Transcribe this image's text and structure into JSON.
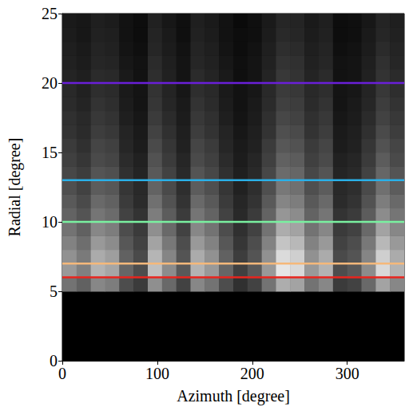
{
  "chart_data": {
    "type": "heatmap",
    "x_label": "Azimuth [degree]",
    "y_label": "Radial [degree]",
    "xlim": [
      0,
      360
    ],
    "ylim": [
      0,
      25
    ],
    "xticks": [
      0,
      100,
      200,
      300
    ],
    "yticks": [
      0,
      5,
      10,
      15,
      20,
      25
    ],
    "x_edges": [
      0,
      15,
      30,
      45,
      60,
      75,
      90,
      105,
      120,
      135,
      150,
      165,
      180,
      195,
      210,
      225,
      240,
      255,
      270,
      285,
      300,
      315,
      330,
      345,
      360
    ],
    "y_edges": [
      5,
      6,
      7,
      8,
      9,
      10,
      11,
      12,
      13,
      14,
      15,
      16,
      17,
      18,
      19,
      20,
      21,
      22,
      23,
      24,
      25
    ],
    "color_range": [
      0,
      100
    ],
    "cells": [
      [
        45,
        38,
        53,
        49,
        30,
        23,
        56,
        41,
        26,
        53,
        45,
        30,
        19,
        26,
        45,
        68,
        64,
        45,
        53,
        23,
        26,
        41,
        64,
        53
      ],
      [
        60,
        50,
        70,
        65,
        40,
        30,
        75,
        55,
        35,
        70,
        60,
        40,
        25,
        35,
        60,
        90,
        85,
        60,
        70,
        30,
        35,
        55,
        85,
        70
      ],
      [
        57,
        48,
        67,
        62,
        38,
        29,
        71,
        52,
        33,
        67,
        57,
        38,
        24,
        33,
        57,
        86,
        81,
        57,
        67,
        29,
        33,
        52,
        81,
        67
      ],
      [
        51,
        43,
        60,
        55,
        34,
        26,
        64,
        47,
        30,
        60,
        51,
        34,
        21,
        30,
        51,
        77,
        72,
        51,
        60,
        26,
        30,
        47,
        72,
        60
      ],
      [
        45,
        38,
        53,
        49,
        30,
        23,
        56,
        41,
        26,
        53,
        45,
        30,
        19,
        26,
        45,
        68,
        64,
        45,
        53,
        23,
        26,
        41,
        64,
        53
      ],
      [
        39,
        33,
        46,
        42,
        26,
        20,
        49,
        36,
        23,
        46,
        39,
        26,
        16,
        23,
        39,
        59,
        55,
        39,
        46,
        20,
        23,
        36,
        55,
        46
      ],
      [
        35,
        29,
        41,
        38,
        23,
        17,
        44,
        32,
        20,
        41,
        35,
        23,
        15,
        20,
        35,
        52,
        49,
        35,
        41,
        17,
        20,
        32,
        49,
        41
      ],
      [
        31,
        26,
        36,
        34,
        21,
        16,
        39,
        29,
        18,
        36,
        31,
        21,
        13,
        18,
        31,
        47,
        44,
        31,
        36,
        16,
        18,
        29,
        44,
        36
      ],
      [
        28,
        24,
        33,
        31,
        19,
        14,
        35,
        26,
        16,
        33,
        28,
        19,
        12,
        16,
        28,
        42,
        40,
        28,
        33,
        14,
        16,
        26,
        40,
        33
      ],
      [
        25,
        21,
        29,
        27,
        17,
        13,
        32,
        23,
        15,
        29,
        25,
        17,
        11,
        15,
        25,
        38,
        36,
        25,
        29,
        13,
        15,
        23,
        36,
        29
      ],
      [
        23,
        19,
        27,
        25,
        15,
        11,
        29,
        21,
        13,
        27,
        23,
        15,
        10,
        13,
        23,
        34,
        32,
        23,
        27,
        11,
        13,
        21,
        32,
        27
      ],
      [
        20,
        17,
        24,
        22,
        14,
        10,
        26,
        19,
        12,
        24,
        20,
        14,
        9,
        12,
        20,
        31,
        29,
        20,
        24,
        10,
        12,
        19,
        29,
        24
      ],
      [
        19,
        16,
        22,
        20,
        12,
        9,
        23,
        17,
        11,
        22,
        19,
        12,
        8,
        11,
        19,
        28,
        26,
        19,
        22,
        9,
        11,
        17,
        26,
        22
      ],
      [
        17,
        14,
        20,
        18,
        11,
        8,
        21,
        15,
        10,
        20,
        17,
        11,
        7,
        10,
        17,
        25,
        24,
        17,
        20,
        8,
        10,
        15,
        24,
        20
      ],
      [
        16,
        13,
        18,
        17,
        10,
        8,
        20,
        14,
        9,
        18,
        16,
        10,
        7,
        9,
        16,
        23,
        22,
        16,
        18,
        8,
        9,
        14,
        22,
        18
      ],
      [
        14,
        12,
        17,
        16,
        10,
        7,
        18,
        13,
        8,
        17,
        14,
        10,
        6,
        8,
        14,
        22,
        20,
        14,
        17,
        7,
        8,
        13,
        20,
        17
      ],
      [
        13,
        11,
        15,
        14,
        9,
        7,
        17,
        12,
        8,
        15,
        13,
        9,
        6,
        8,
        13,
        20,
        19,
        13,
        15,
        7,
        8,
        12,
        19,
        15
      ],
      [
        12,
        10,
        14,
        13,
        8,
        6,
        15,
        11,
        7,
        14,
        12,
        8,
        5,
        7,
        12,
        18,
        17,
        12,
        14,
        6,
        7,
        11,
        17,
        14
      ],
      [
        11,
        9,
        13,
        12,
        7,
        5,
        14,
        10,
        6,
        13,
        11,
        7,
        5,
        6,
        11,
        16,
        15,
        11,
        13,
        5,
        6,
        10,
        15,
        13
      ],
      [
        10,
        9,
        12,
        11,
        7,
        5,
        13,
        9,
        6,
        12,
        10,
        7,
        4,
        6,
        10,
        15,
        14,
        10,
        12,
        5,
        6,
        9,
        14,
        12
      ]
    ],
    "lines": [
      {
        "y": 6,
        "color": "#e8251e"
      },
      {
        "y": 7,
        "color": "#f5b87a"
      },
      {
        "y": 10,
        "color": "#7af0a0"
      },
      {
        "y": 13,
        "color": "#2ab0e8"
      },
      {
        "y": 20,
        "color": "#6a1fd8"
      }
    ]
  }
}
